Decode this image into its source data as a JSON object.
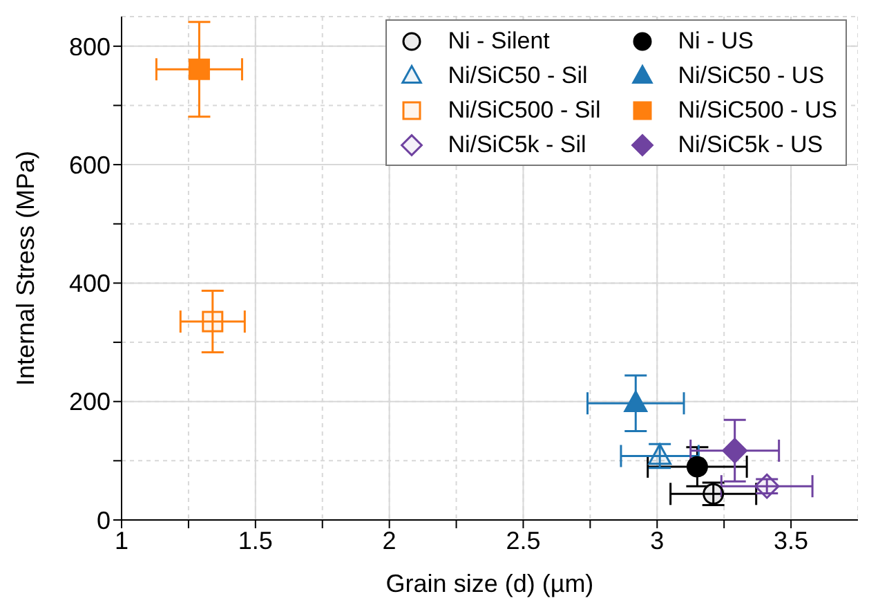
{
  "chart_data": {
    "type": "scatter",
    "xlabel": "Grain size (d) (µm)",
    "ylabel": "Internal Stress (MPa)",
    "xlim": [
      1,
      3.75
    ],
    "xticks": [
      1,
      {
        "value": 1.25,
        "label": null
      },
      1.5,
      {
        "value": 1.75,
        "label": null
      },
      2,
      {
        "value": 2.25,
        "label": null
      },
      2.5,
      {
        "value": 2.75,
        "label": null
      },
      3,
      {
        "value": 3.25,
        "label": null
      },
      3.5
    ],
    "ylim": [
      0,
      850
    ],
    "yticks": [
      0,
      {
        "value": 100,
        "label": null
      },
      200,
      {
        "value": 300,
        "label": null
      },
      400,
      {
        "value": 500,
        "label": null
      },
      600,
      {
        "value": 700,
        "label": null
      },
      800
    ],
    "grid": true,
    "legend": "top right",
    "series": [
      {
        "name": "Ni - Silent",
        "color": "#000000",
        "marker": "circle",
        "x": [
          3.21
        ],
        "values": [
          44
        ],
        "errors": [
          19
        ],
        "xerrors": [
          0.16
        ]
      },
      {
        "name": "Ni - US",
        "color": "#000000",
        "marker": "circle",
        "x": [
          3.15
        ],
        "values": [
          90
        ],
        "errors": [
          33
        ],
        "xerrors": [
          0.185
        ]
      },
      {
        "name": "Ni/SiC50 - Sil",
        "color": "#1f77b4",
        "marker": "triangle",
        "x": [
          3.01
        ],
        "values": [
          108
        ],
        "errors": [
          20
        ],
        "xerrors": [
          0.145
        ]
      },
      {
        "name": "Ni/SiC50 - US",
        "color": "#1f77b4",
        "marker": "triangle",
        "x": [
          2.92
        ],
        "values": [
          197
        ],
        "errors": [
          47
        ],
        "xerrors": [
          0.18
        ]
      },
      {
        "name": "Ni/SiC500 - Sil",
        "color": "#ff7f0e",
        "marker": "square",
        "x": [
          1.34
        ],
        "values": [
          335
        ],
        "errors": [
          52
        ],
        "xerrors": [
          0.12
        ]
      },
      {
        "name": "Ni/SiC500 - US",
        "color": "#ff7f0e",
        "marker": "square",
        "x": [
          1.29
        ],
        "values": [
          761
        ],
        "errors": [
          80
        ],
        "xerrors": [
          0.16
        ]
      },
      {
        "name": "Ni/SiC5k - Sil",
        "color": "#6f42a0",
        "marker": "diamond",
        "x": [
          3.41
        ],
        "values": [
          57
        ],
        "errors": [
          12
        ],
        "xerrors": [
          0.17
        ]
      },
      {
        "name": "Ni/SiC5k - US",
        "color": "#6f42a0",
        "marker": "diamond",
        "x": [
          3.29
        ],
        "values": [
          117
        ],
        "errors": [
          52
        ],
        "xerrors": [
          0.165
        ]
      }
    ]
  }
}
